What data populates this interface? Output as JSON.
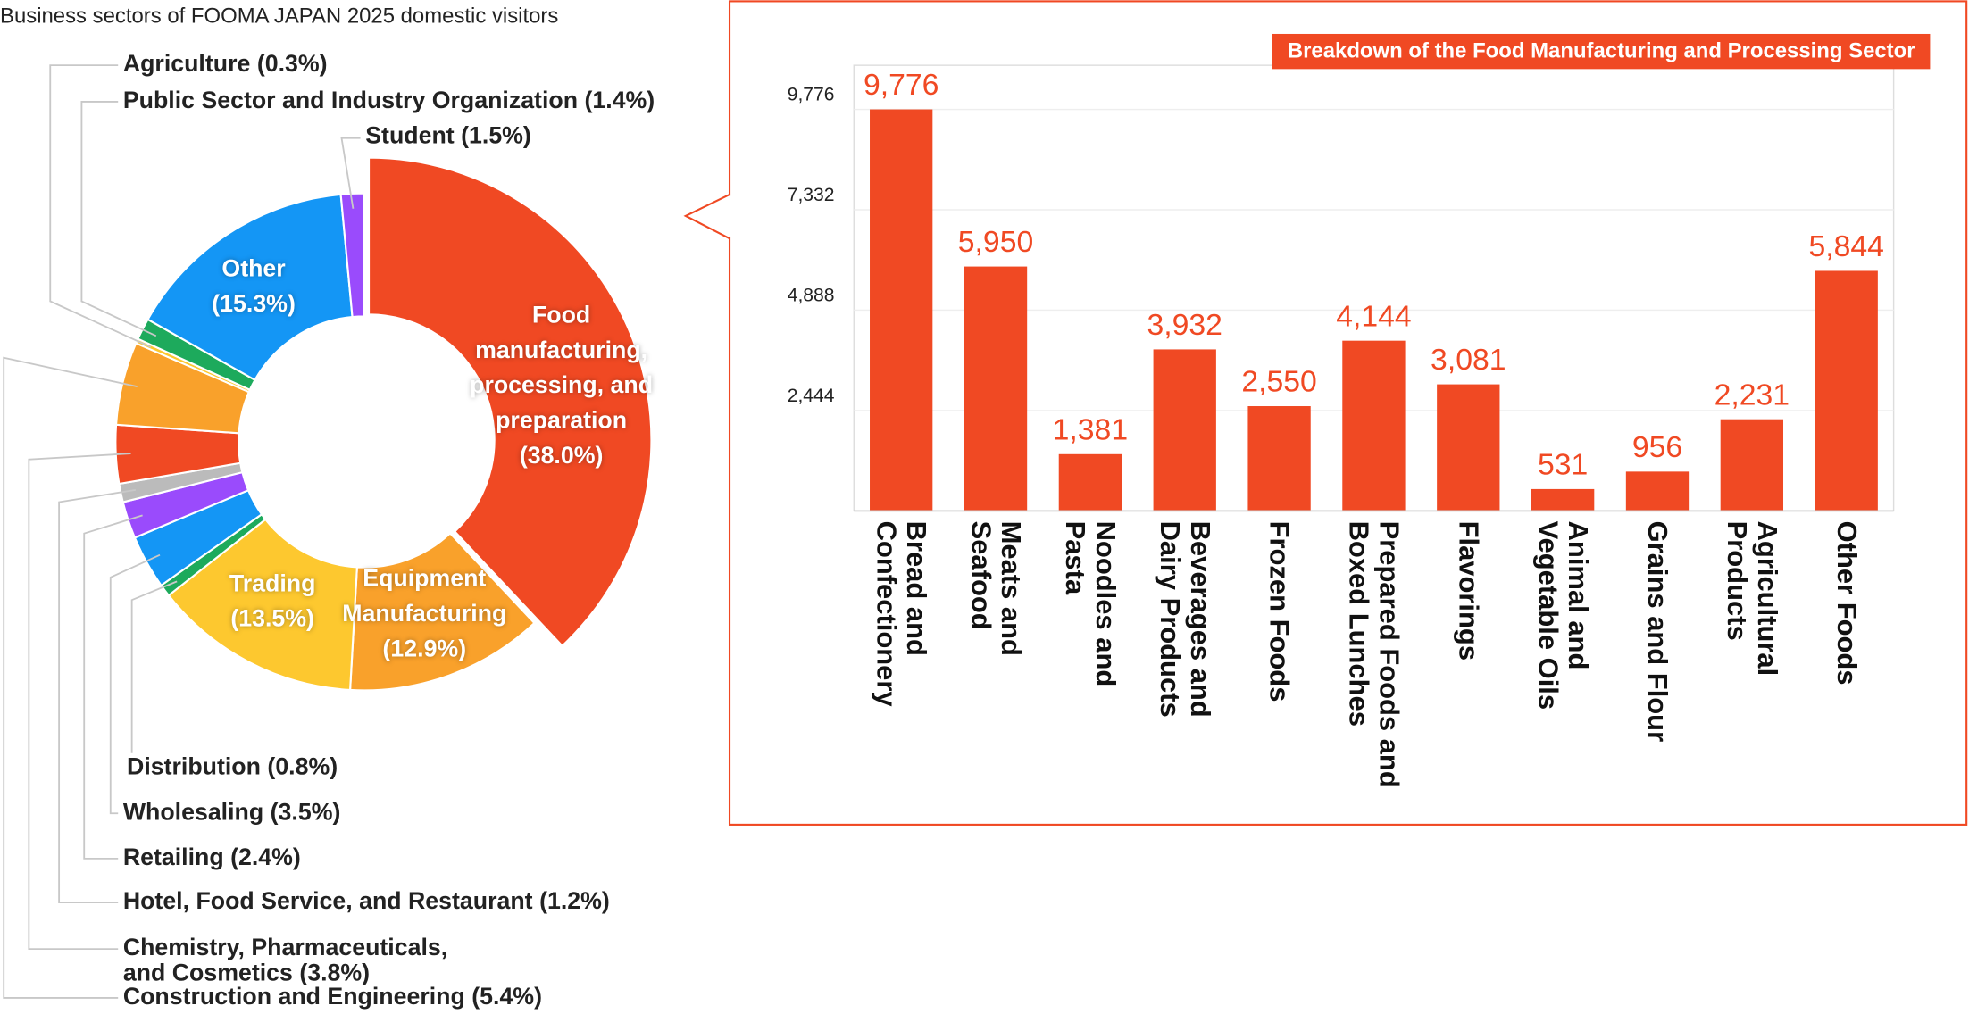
{
  "chart_data": [
    {
      "type": "pie",
      "title": "Business sectors of FOOMA JAPAN 2025 domestic visitors",
      "categories": [
        "Food manufacturing, processing, and preparation",
        "Equipment Manufacturing",
        "Trading",
        "Distribution",
        "Wholesaling",
        "Retailing",
        "Hotel, Food Service, and Restaurant",
        "Chemistry, Pharmaceuticals, and Cosmetics",
        "Construction and Engineering",
        "Agriculture",
        "Public Sector and Industry Organization",
        "Other",
        "Student"
      ],
      "values": [
        38.0,
        12.9,
        13.5,
        0.8,
        3.5,
        2.4,
        1.2,
        3.8,
        5.4,
        0.3,
        1.4,
        15.3,
        1.5
      ],
      "value_labels": [
        "(38.0%)",
        "(12.9%)",
        "(13.5%)",
        "(0.8%)",
        "(3.5%)",
        "(2.4%)",
        "(1.2%)",
        "(3.8%)",
        "(5.4%)",
        "(0.3%)",
        "(1.4%)",
        "(15.3%)",
        "(1.5%)"
      ],
      "colors": [
        "#f04923",
        "#f9a12b",
        "#fdc82f",
        "#1daa5c",
        "#1496f5",
        "#9a4bfc",
        "#bbbbbb",
        "#f04923",
        "#f9a12b",
        "#fdc82f",
        "#1daa5c",
        "#1496f5",
        "#9a4bfc"
      ]
    },
    {
      "type": "bar",
      "title": "Breakdown of the Food Manufacturing and Processing Sector",
      "categories": [
        "Bread and Confectionery",
        "Meats and Seafood",
        "Noodles and Pasta",
        "Beverages and Dairy Products",
        "Frozen Foods",
        "Prepared Foods and Boxed Lunches",
        "Flavorings",
        "Animal and Vegetable Oils",
        "Grains and Flour",
        "Agricultural Products",
        "Other Foods"
      ],
      "values": [
        9776,
        5950,
        1381,
        3932,
        2550,
        4144,
        3081,
        531,
        956,
        2231,
        5844
      ],
      "value_labels": [
        "9,776",
        "5,950",
        "1,381",
        "3,932",
        "2,550",
        "4,144",
        "3,081",
        "531",
        "956",
        "2,231",
        "5,844"
      ],
      "color": "#f04923",
      "ylim": [
        0,
        10850
      ],
      "yticks": [
        {
          "value": 2444,
          "label": "2,444"
        },
        {
          "value": 4888,
          "label": "4,888"
        },
        {
          "value": 7332,
          "label": "7,332"
        },
        {
          "value": 9776,
          "label": "9,776"
        }
      ],
      "grid": true
    }
  ]
}
